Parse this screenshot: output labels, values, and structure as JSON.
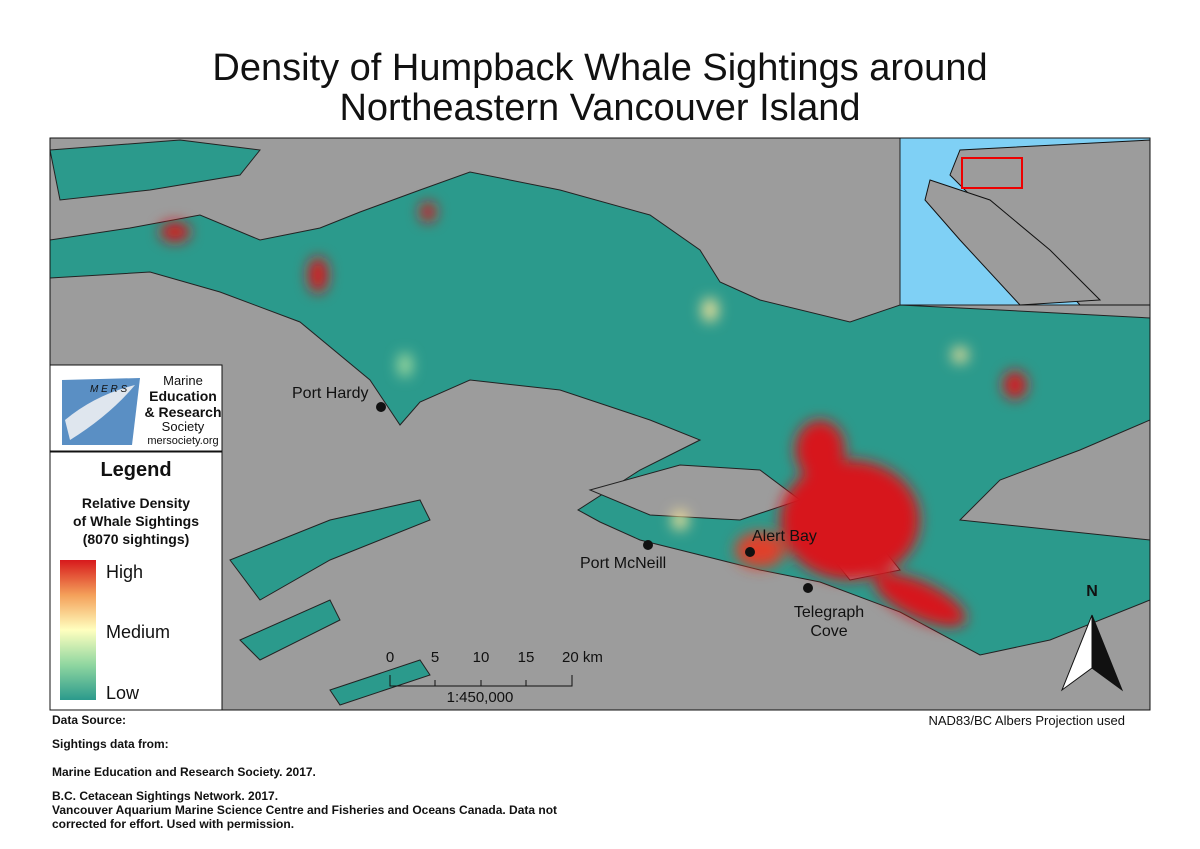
{
  "title": [
    "Density of Humpback Whale Sightings around",
    "Northeastern Vancouver Island"
  ],
  "logo": {
    "letters": "M E R S",
    "name": [
      "Marine",
      "Education",
      "& Research",
      "Society"
    ],
    "url": "mersociety.org"
  },
  "legend": {
    "title": "Legend",
    "subtitle": [
      "Relative Density",
      "of Whale Sightings",
      "(8070 sightings)"
    ],
    "levels": [
      "High",
      "Medium",
      "Low"
    ]
  },
  "places": [
    "Port Hardy",
    "Port McNeill",
    "Alert Bay",
    "Telegraph",
    "Cove"
  ],
  "scale_bar": {
    "ticks": [
      "0",
      "5",
      "10",
      "15",
      "20 km"
    ],
    "ratio": "1:450,000"
  },
  "north": "N",
  "projection": "NAD83/BC Albers Projection used",
  "footer": [
    "Data Source:",
    "Sightings data from:",
    "Marine Education and Research Society. 2017.",
    "B.C. Cetacean Sightings Network. 2017.",
    "Vancouver Aquarium Marine Science Centre and Fisheries and Oceans Canada. Data not",
    "corrected for effort. Used with permission."
  ]
}
